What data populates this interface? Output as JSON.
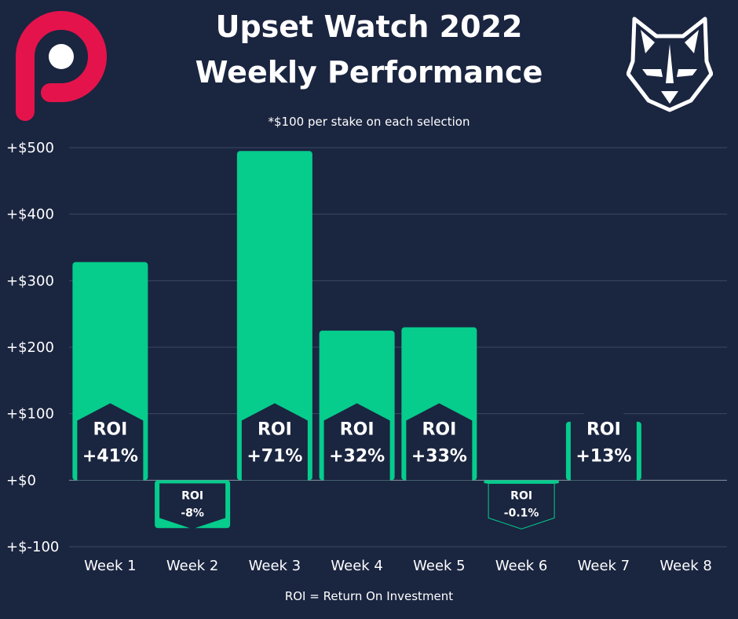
{
  "header": {
    "title_line1": "Upset Watch 2022",
    "title_line2": "Weekly Performance",
    "subtitle": "*$100 per stake on each selection"
  },
  "footer": {
    "note": "ROI = Return On Investment"
  },
  "logos": {
    "left": "p-brand-logo",
    "right": "wolf-head-logo"
  },
  "colors": {
    "background": "#1a2540",
    "bar": "#06cc8c",
    "label_box": "#1a2540",
    "left_logo": "#e5134b",
    "grid": "#3c4863"
  },
  "chart_data": {
    "type": "bar",
    "title": "Upset Watch 2022 Weekly Performance",
    "subtitle": "*$100 per stake on each selection",
    "xlabel": "",
    "ylabel": "",
    "categories": [
      "Week 1",
      "Week 2",
      "Week 3",
      "Week 4",
      "Week 5",
      "Week 6",
      "Week 7",
      "Week 8"
    ],
    "values": [
      328,
      -72,
      495,
      225,
      230,
      -5,
      88,
      0
    ],
    "roi_prefix": "ROI",
    "roi_labels": [
      "+41%",
      "-8%",
      "+71%",
      "+32%",
      "+33%",
      "-0.1%",
      "+13%",
      ""
    ],
    "ylim": [
      -100,
      500
    ],
    "yticks": [
      500,
      400,
      300,
      200,
      100,
      0,
      -100
    ],
    "ytick_labels": [
      "+$500",
      "+$400",
      "+$300",
      "+$200",
      "+$100",
      "+$0",
      "+$-100"
    ],
    "grid": true,
    "footnote": "ROI = Return On Investment"
  }
}
